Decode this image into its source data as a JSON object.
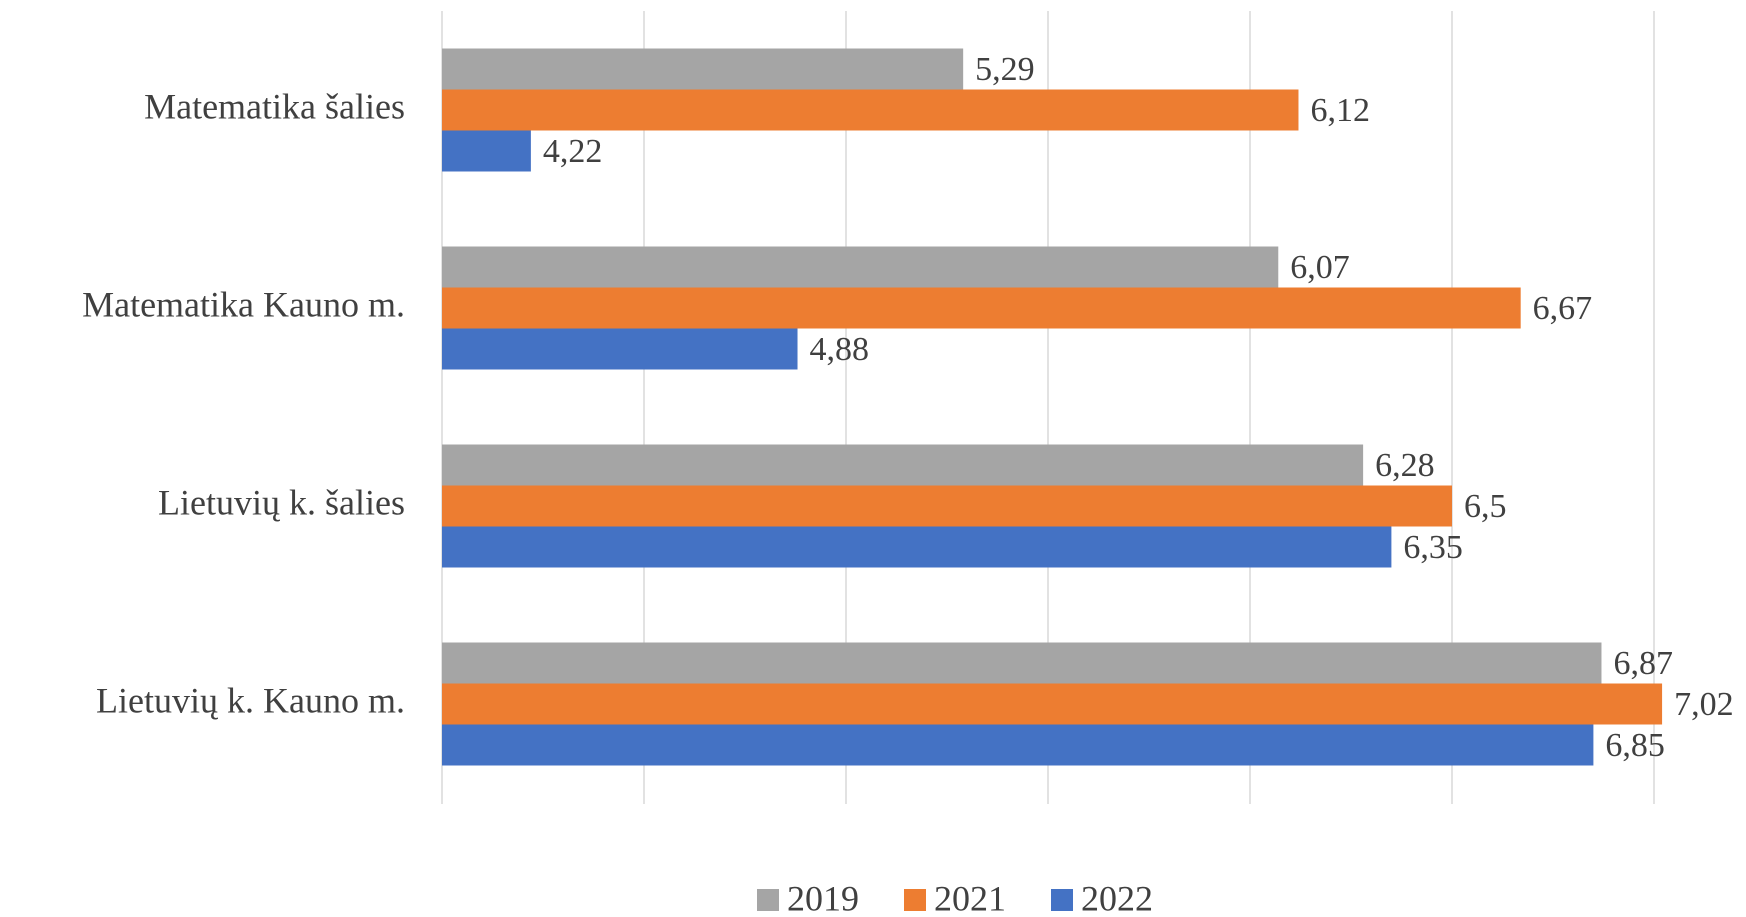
{
  "chart_data": {
    "type": "hbar",
    "categories": [
      "Matematika šalies",
      "Matematika Kauno m.",
      "Lietuvių k. šalies",
      "Lietuvių k. Kauno m."
    ],
    "series": [
      {
        "name": "2019",
        "color": "#a5a5a5",
        "values": [
          5.29,
          6.07,
          6.28,
          6.87
        ],
        "value_labels": [
          "5,29",
          "6,07",
          "6,28",
          "6,87"
        ]
      },
      {
        "name": "2021",
        "color": "#ed7d31",
        "values": [
          6.12,
          6.67,
          6.5,
          7.02
        ],
        "value_labels": [
          "6,12",
          "6,67",
          "6,5",
          "7,02"
        ]
      },
      {
        "name": "2022",
        "color": "#4472c4",
        "values": [
          4.22,
          4.88,
          6.35,
          6.85
        ],
        "value_labels": [
          "4,22",
          "4,88",
          "6,35",
          "6,85"
        ]
      }
    ],
    "xlim": [
      4,
      7
    ],
    "xticks": [
      4,
      4.5,
      5,
      5.5,
      6,
      6.5,
      7
    ],
    "grid": true,
    "legend": "bottom"
  }
}
